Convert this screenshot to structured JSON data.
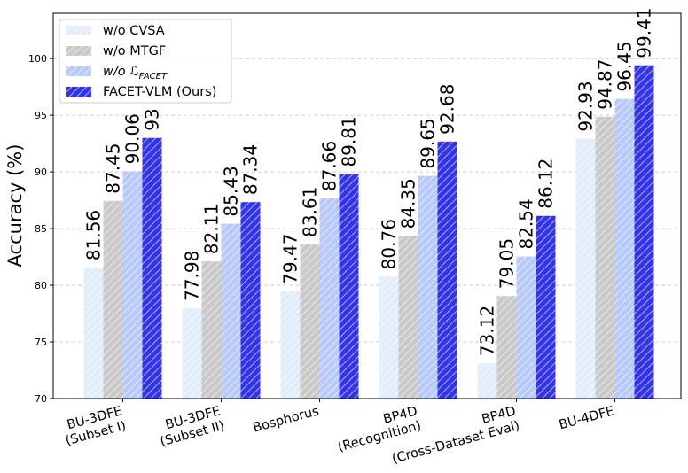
{
  "chart_data": {
    "type": "bar",
    "title": "",
    "xlabel": "",
    "ylabel": "Accuracy (%)",
    "ylim": [
      70,
      104
    ],
    "yticks": [
      70,
      75,
      80,
      85,
      90,
      95,
      100
    ],
    "grid": "y-dashed",
    "legend_position": "top-left",
    "categories": [
      [
        "BU-3DFE",
        "(Subset I)"
      ],
      [
        "BU-3DFE",
        "(Subset II)"
      ],
      [
        "Bosphorus"
      ],
      [
        "BP4D",
        "(Recognition)"
      ],
      [
        "BP4D",
        "(Cross-Dataset Eval)"
      ],
      [
        "BU-4DFE"
      ]
    ],
    "series": [
      {
        "name": "w/o CVSA",
        "color": "#e3ecfb",
        "values": [
          81.56,
          77.98,
          79.47,
          80.76,
          73.12,
          92.93
        ]
      },
      {
        "name": "w/o MTGF",
        "color": "#c9c9c9",
        "values": [
          87.45,
          82.11,
          83.61,
          84.35,
          79.05,
          94.87
        ]
      },
      {
        "name": "w/o ℒ",
        "name_sub": "FACET",
        "color": "#b8cafc",
        "values": [
          90.06,
          85.43,
          87.66,
          89.65,
          82.54,
          96.45
        ]
      },
      {
        "name": "FACET-VLM (Ours)",
        "color": "#3333e8",
        "values": [
          93.0,
          87.34,
          89.81,
          92.68,
          86.12,
          99.41
        ]
      }
    ],
    "data_labels": [
      [
        "81.56",
        "77.98",
        "79.47",
        "80.76",
        "73.12",
        "92.93"
      ],
      [
        "87.45",
        "82.11",
        "83.61",
        "84.35",
        "79.05",
        "94.87"
      ],
      [
        "90.06",
        "85.43",
        "87.66",
        "89.65",
        "82.54",
        "96.45"
      ],
      [
        "93",
        "87.34",
        "89.81",
        "92.68",
        "86.12",
        "99.41"
      ]
    ]
  }
}
